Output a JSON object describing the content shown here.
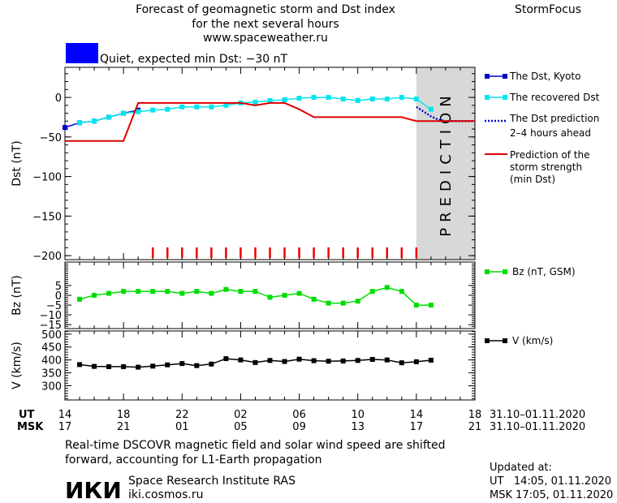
{
  "header": {
    "title_lines": [
      "Forecast of geomagnetic storm and Dst index",
      "for the next several hours",
      "www.spaceweather.ru"
    ],
    "brand": "StormFocus",
    "status_text": "Quiet, expected min Dst: −30 nT"
  },
  "colors": {
    "status": "#0000ff",
    "dst_kyoto": "#0000cc",
    "dst_recovered": "#00e5ee",
    "dst_prediction": "#0000cc",
    "storm_strength": "#dd0000",
    "bz": "#00dd00",
    "v": "#000000",
    "prediction_shade": "#d8d8d8",
    "tick_marks": "#ee0000"
  },
  "legend": {
    "dst_kyoto": "The Dst, Kyoto",
    "dst_recovered": "The recovered Dst",
    "dst_prediction": [
      "The Dst prediction",
      "2–4 hours ahead"
    ],
    "storm_strength": [
      "Prediction of the",
      "storm strength",
      "(min Dst)"
    ],
    "bz": "Bz (nT, GSM)",
    "v": "V (km/s)"
  },
  "prediction_label": "PREDICTION",
  "time_axis": {
    "ut_label": "UT",
    "msk_label": "MSK",
    "ut_ticks": [
      "14",
      "18",
      "22",
      "02",
      "06",
      "10",
      "14",
      "18"
    ],
    "msk_ticks": [
      "17",
      "21",
      "01",
      "05",
      "09",
      "13",
      "17",
      "21"
    ],
    "date_range_ut": "31.10–01.11.2020",
    "date_range_msk": "31.10–01.11.2020"
  },
  "chart_data": [
    {
      "type": "line",
      "ylabel": "Dst (nT)",
      "xlim": [
        14,
        42
      ],
      "ylim": [
        -205,
        38
      ],
      "yticks": [
        0,
        -50,
        -100,
        -150,
        -200
      ],
      "prediction_start": 38,
      "series": [
        {
          "name": "The Dst, Kyoto",
          "x": [
            14,
            15,
            16,
            17,
            18,
            19
          ],
          "y": [
            -38,
            -32,
            -30,
            -25,
            -20,
            -16
          ]
        },
        {
          "name": "The recovered Dst",
          "x": [
            15,
            16,
            17,
            18,
            19,
            20,
            21,
            22,
            23,
            24,
            25,
            26,
            27,
            28,
            29,
            30,
            31,
            32,
            33,
            34,
            35,
            36,
            37,
            38,
            39
          ],
          "y": [
            -32,
            -30,
            -25,
            -20,
            -18,
            -16,
            -15,
            -12,
            -12,
            -12,
            -10,
            -7,
            -6,
            -4,
            -3,
            -1,
            0,
            0,
            -2,
            -4,
            -2,
            -2,
            0,
            -2,
            -15
          ]
        },
        {
          "name": "The Dst prediction 2–4 hours ahead",
          "x": [
            38,
            38.5,
            39,
            39.5,
            40,
            41,
            42
          ],
          "y": [
            -12,
            -18,
            -24,
            -28,
            -30,
            -30,
            -30
          ]
        },
        {
          "name": "Prediction of the storm strength (min Dst)",
          "x": [
            14,
            18,
            19,
            24,
            26,
            27,
            28,
            29,
            30,
            31,
            32,
            33,
            34,
            35,
            36,
            37,
            38,
            42
          ],
          "y": [
            -55,
            -55,
            -7,
            -7,
            -7,
            -10,
            -7,
            -7,
            -15,
            -25,
            -25,
            -25,
            -25,
            -25,
            -25,
            -25,
            -30,
            -30
          ]
        }
      ],
      "event_ticks_x": [
        20,
        21,
        22,
        23,
        24,
        25,
        26,
        27,
        28,
        29,
        30,
        31,
        32,
        33,
        34,
        35,
        36,
        37,
        38
      ]
    },
    {
      "type": "line",
      "ylabel": "Bz (nT)",
      "xlim": [
        14,
        42
      ],
      "ylim": [
        -17,
        17
      ],
      "yticks": [
        5,
        0,
        -5,
        -10,
        -15
      ],
      "series": [
        {
          "name": "Bz (nT, GSM)",
          "x": [
            15,
            16,
            17,
            18,
            19,
            20,
            21,
            22,
            23,
            24,
            25,
            26,
            27,
            28,
            29,
            30,
            31,
            32,
            33,
            34,
            35,
            36,
            37,
            38,
            39
          ],
          "y": [
            -2,
            0,
            1,
            2,
            2,
            2,
            2,
            1,
            2,
            1,
            3,
            2,
            2,
            -1,
            0,
            1,
            -2,
            -4,
            -4,
            -3,
            2,
            4,
            2,
            -5,
            -5
          ]
        }
      ]
    },
    {
      "type": "line",
      "ylabel": "V (km/s)",
      "xlim": [
        14,
        42
      ],
      "ylim": [
        245,
        512
      ],
      "yticks": [
        500,
        450,
        400,
        350,
        300
      ],
      "series": [
        {
          "name": "V (km/s)",
          "x": [
            15,
            16,
            17,
            18,
            19,
            20,
            21,
            22,
            23,
            24,
            25,
            26,
            27,
            28,
            29,
            30,
            31,
            32,
            33,
            34,
            35,
            36,
            37,
            38,
            39
          ],
          "y": [
            382,
            375,
            374,
            374,
            372,
            376,
            381,
            386,
            378,
            384,
            405,
            400,
            390,
            398,
            394,
            403,
            397,
            395,
            396,
            398,
            402,
            400,
            389,
            393,
            399
          ]
        }
      ]
    }
  ],
  "footer": {
    "note": [
      "Real-time DSCOVR magnetic field and solar wind speed are shifted",
      "forward, accounting for L1-Earth propagation"
    ],
    "logo_text": "ИКИ",
    "institute": "Space Research Institute RAS",
    "site": "iki.cosmos.ru",
    "updated_label": "Updated at:",
    "updated_ut": "UT   14:05, 01.11.2020",
    "updated_msk": "MSK 17:05, 01.11.2020"
  }
}
